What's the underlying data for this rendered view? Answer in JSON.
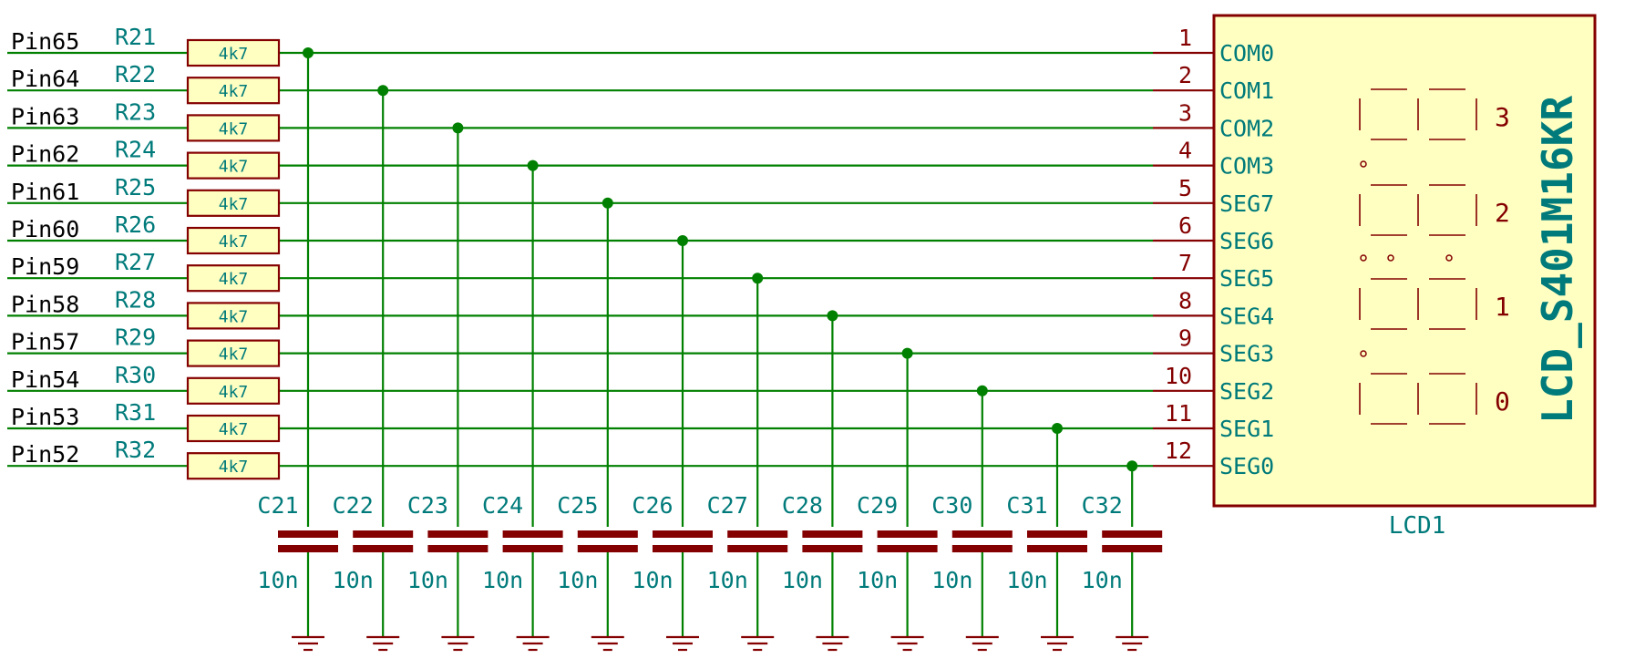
{
  "colors": {
    "wire": "#008000",
    "part": "#840000",
    "label": "#007a7a",
    "body_fill": "#ffffc2",
    "background": "#ffffff"
  },
  "rows": [
    {
      "pin": "Pin65",
      "res": "R21",
      "value": "4k7",
      "lcd_pin": "1",
      "lcd_name": "COM0"
    },
    {
      "pin": "Pin64",
      "res": "R22",
      "value": "4k7",
      "lcd_pin": "2",
      "lcd_name": "COM1"
    },
    {
      "pin": "Pin63",
      "res": "R23",
      "value": "4k7",
      "lcd_pin": "3",
      "lcd_name": "COM2"
    },
    {
      "pin": "Pin62",
      "res": "R24",
      "value": "4k7",
      "lcd_pin": "4",
      "lcd_name": "COM3"
    },
    {
      "pin": "Pin61",
      "res": "R25",
      "value": "4k7",
      "lcd_pin": "5",
      "lcd_name": "SEG7"
    },
    {
      "pin": "Pin60",
      "res": "R26",
      "value": "4k7",
      "lcd_pin": "6",
      "lcd_name": "SEG6"
    },
    {
      "pin": "Pin59",
      "res": "R27",
      "value": "4k7",
      "lcd_pin": "7",
      "lcd_name": "SEG5"
    },
    {
      "pin": "Pin58",
      "res": "R28",
      "value": "4k7",
      "lcd_pin": "8",
      "lcd_name": "SEG4"
    },
    {
      "pin": "Pin57",
      "res": "R29",
      "value": "4k7",
      "lcd_pin": "9",
      "lcd_name": "SEG3"
    },
    {
      "pin": "Pin54",
      "res": "R30",
      "value": "4k7",
      "lcd_pin": "10",
      "lcd_name": "SEG2"
    },
    {
      "pin": "Pin53",
      "res": "R31",
      "value": "4k7",
      "lcd_pin": "11",
      "lcd_name": "SEG1"
    },
    {
      "pin": "Pin52",
      "res": "R32",
      "value": "4k7",
      "lcd_pin": "12",
      "lcd_name": "SEG0"
    }
  ],
  "caps": [
    {
      "ref": "C21",
      "value": "10n"
    },
    {
      "ref": "C22",
      "value": "10n"
    },
    {
      "ref": "C23",
      "value": "10n"
    },
    {
      "ref": "C24",
      "value": "10n"
    },
    {
      "ref": "C25",
      "value": "10n"
    },
    {
      "ref": "C26",
      "value": "10n"
    },
    {
      "ref": "C27",
      "value": "10n"
    },
    {
      "ref": "C28",
      "value": "10n"
    },
    {
      "ref": "C29",
      "value": "10n"
    },
    {
      "ref": "C30",
      "value": "10n"
    },
    {
      "ref": "C31",
      "value": "10n"
    },
    {
      "ref": "C32",
      "value": "10n"
    }
  ],
  "lcd": {
    "ref": "LCD1",
    "part": "LCD_S401M16KR",
    "digit_labels": [
      "3",
      "2",
      "1",
      "0"
    ]
  }
}
